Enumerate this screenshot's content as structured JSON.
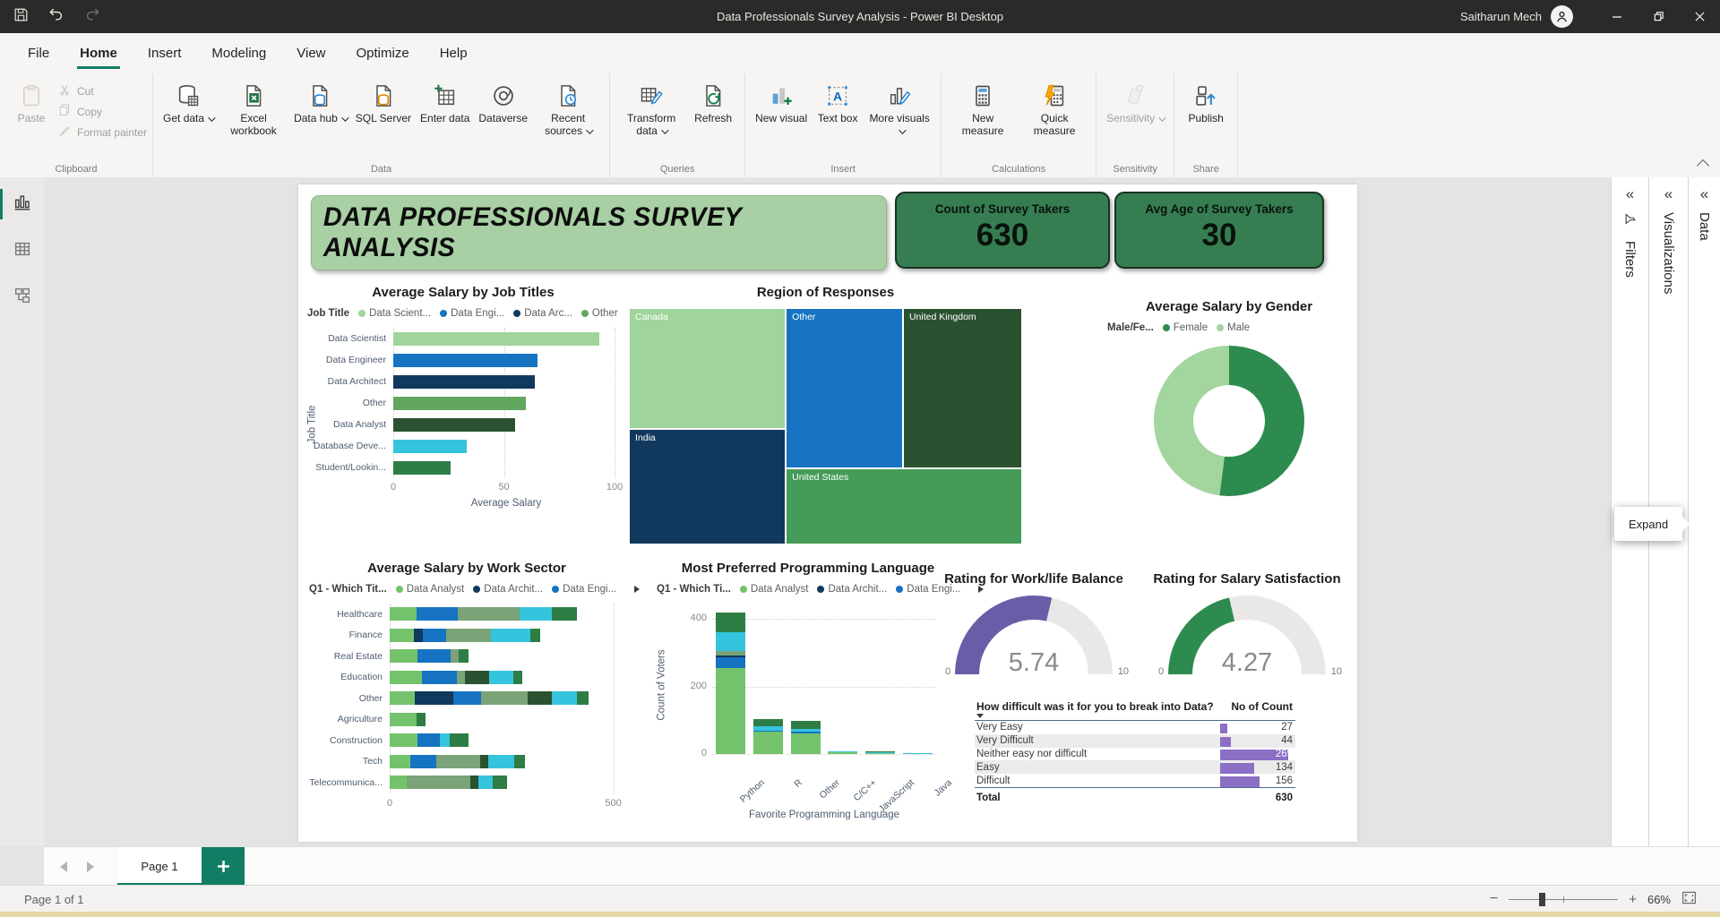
{
  "titlebar": {
    "title": "Data Professionals Survey Analysis - Power BI Desktop",
    "user": "Saitharun Mech"
  },
  "menu": {
    "items": [
      {
        "label": "File",
        "active": false
      },
      {
        "label": "Home",
        "active": true
      },
      {
        "label": "Insert",
        "active": false
      },
      {
        "label": "Modeling",
        "active": false
      },
      {
        "label": "View",
        "active": false
      },
      {
        "label": "Optimize",
        "active": false
      },
      {
        "label": "Help",
        "active": false
      }
    ]
  },
  "ribbon": {
    "groups": [
      {
        "label": "Clipboard",
        "kind": "clipboard",
        "buttons": [
          {
            "label": "Paste",
            "icon": "clipboard",
            "disabled": true
          },
          {
            "label": "Cut",
            "icon": "scissors",
            "disabled": true
          },
          {
            "label": "Copy",
            "icon": "copy",
            "disabled": true
          },
          {
            "label": "Format painter",
            "icon": "brush",
            "disabled": true
          }
        ]
      },
      {
        "label": "Data",
        "kind": "normal",
        "buttons": [
          {
            "label": "Get data",
            "icon": "getdata",
            "chevron": true
          },
          {
            "label": "Excel workbook",
            "icon": "excel"
          },
          {
            "label": "Data hub",
            "icon": "datahub",
            "chevron": true
          },
          {
            "label": "SQL Server",
            "icon": "sql"
          },
          {
            "label": "Enter data",
            "icon": "enterdata"
          },
          {
            "label": "Dataverse",
            "icon": "dataverse"
          },
          {
            "label": "Recent sources",
            "icon": "recent",
            "chevron": true
          }
        ]
      },
      {
        "label": "Queries",
        "kind": "normal",
        "buttons": [
          {
            "label": "Transform data",
            "icon": "transform",
            "chevron": true
          },
          {
            "label": "Refresh",
            "icon": "refresh"
          }
        ]
      },
      {
        "label": "Insert",
        "kind": "normal",
        "buttons": [
          {
            "label": "New visual",
            "icon": "newvisual"
          },
          {
            "label": "Text box",
            "icon": "textbox"
          },
          {
            "label": "More visuals",
            "icon": "morevisuals",
            "chevron": true
          }
        ]
      },
      {
        "label": "Calculations",
        "kind": "normal",
        "buttons": [
          {
            "label": "New measure",
            "icon": "newmeasure"
          },
          {
            "label": "Quick measure",
            "icon": "quickmeasure"
          }
        ]
      },
      {
        "label": "Sensitivity",
        "kind": "normal",
        "buttons": [
          {
            "label": "Sensitivity",
            "icon": "sensitivity",
            "chevron": true,
            "disabled": true
          }
        ]
      },
      {
        "label": "Share",
        "kind": "normal",
        "buttons": [
          {
            "label": "Publish",
            "icon": "publish"
          }
        ]
      }
    ]
  },
  "dashboard": {
    "banner": "DATA PROFESSIONALS SURVEY ANALYSIS",
    "kpis": [
      {
        "label": "Count of Survey Takers",
        "value": "630"
      },
      {
        "label": "Avg Age of Survey Takers",
        "value": "30"
      }
    ]
  },
  "panels": {
    "filters": "Filters",
    "visualizations": "Visualizations",
    "data": "Data",
    "expand_tooltip": "Expand"
  },
  "tabs": {
    "page_label": "Page 1"
  },
  "statusbar": {
    "page_info": "Page 1 of 1",
    "zoom": "66%"
  },
  "chart_data": [
    {
      "id": "job_titles",
      "type": "bar",
      "title": "Average Salary by Job Titles",
      "legend_title": "Job Title",
      "legend": [
        {
          "label": "Data Scient...",
          "color": "#9fd49a"
        },
        {
          "label": "Data Engi...",
          "color": "#1673c1"
        },
        {
          "label": "Data Arc...",
          "color": "#11395d"
        },
        {
          "label": "Other",
          "color": "#61a75f"
        }
      ],
      "categories": [
        "Data Scientist",
        "Data Engineer",
        "Data Architect",
        "Other",
        "Data Analyst",
        "Database Deve...",
        "Student/Lookin..."
      ],
      "values": [
        93,
        65,
        64,
        60,
        55,
        33,
        26
      ],
      "bar_colors": [
        "#9fd49a",
        "#1673c1",
        "#11395d",
        "#61a75f",
        "#2b5230",
        "#35c4dd",
        "#2e7d45"
      ],
      "xlabel": "Average Salary",
      "ylabel": "Job Title",
      "x_ticks": [
        0,
        50,
        100
      ],
      "xlim": [
        0,
        102
      ]
    },
    {
      "id": "regions",
      "type": "treemap",
      "title": "Region of Responses",
      "blocks": [
        {
          "label": "Canada",
          "color": "#9fd49a",
          "x": 0,
          "y": 0,
          "w": 39.9,
          "h": 51.3
        },
        {
          "label": "India",
          "color": "#11395d",
          "x": 0,
          "y": 51.3,
          "w": 39.9,
          "h": 48.7
        },
        {
          "label": "Other",
          "color": "#1673c1",
          "x": 39.9,
          "y": 0,
          "w": 29.8,
          "h": 67.9
        },
        {
          "label": "United Kingdom",
          "color": "#2b5230",
          "x": 69.7,
          "y": 0,
          "w": 30.3,
          "h": 67.9
        },
        {
          "label": "United States",
          "color": "#459b58",
          "x": 39.9,
          "y": 67.9,
          "w": 60.1,
          "h": 32.1
        }
      ]
    },
    {
      "id": "gender",
      "type": "donut",
      "title": "Average Salary by Gender",
      "legend_title": "Male/Fe...",
      "slices": [
        {
          "label": "Female",
          "value": 52,
          "color": "#2e8b4f"
        },
        {
          "label": "Male",
          "value": 48,
          "color": "#a3d69e"
        }
      ]
    },
    {
      "id": "work_sector",
      "type": "stacked_bar",
      "title": "Average Salary by Work Sector",
      "legend_title": "Q1 - Which Tit...",
      "legend": [
        {
          "label": "Data Analyst",
          "color": "#74c36c"
        },
        {
          "label": "Data Archit...",
          "color": "#11395d"
        },
        {
          "label": "Data Engi...",
          "color": "#1673c1"
        }
      ],
      "palette": {
        "analyst": "#74c36c",
        "architect": "#11395d",
        "engineer": "#1673c1",
        "scientist": "#7aa377",
        "dbdev": "#35c4dd",
        "forest": "#2b5230",
        "seagreen": "#2e7d45"
      },
      "x_ticks": [
        0,
        500
      ],
      "xlim": [
        0,
        525
      ],
      "rows": [
        {
          "label": "Healthcare",
          "segments": [
            [
              "analyst",
              60
            ],
            [
              "engineer",
              92
            ],
            [
              "scientist",
              139
            ],
            [
              "dbdev",
              71
            ],
            [
              "seagreen",
              56
            ]
          ]
        },
        {
          "label": "Finance",
          "segments": [
            [
              "analyst",
              54
            ],
            [
              "architect",
              21
            ],
            [
              "engineer",
              51
            ],
            [
              "scientist",
              100
            ],
            [
              "dbdev",
              89
            ],
            [
              "seagreen",
              22
            ]
          ]
        },
        {
          "label": "Real Estate",
          "segments": [
            [
              "analyst",
              62
            ],
            [
              "engineer",
              74
            ],
            [
              "scientist",
              19
            ],
            [
              "seagreen",
              21
            ]
          ]
        },
        {
          "label": "Education",
          "segments": [
            [
              "analyst",
              72
            ],
            [
              "engineer",
              79
            ],
            [
              "scientist",
              17
            ],
            [
              "forest",
              54
            ],
            [
              "dbdev",
              54
            ],
            [
              "seagreen",
              21
            ]
          ]
        },
        {
          "label": "Other",
          "segments": [
            [
              "analyst",
              56
            ],
            [
              "architect",
              87
            ],
            [
              "engineer",
              62
            ],
            [
              "scientist",
              104
            ],
            [
              "forest",
              54
            ],
            [
              "dbdev",
              56
            ],
            [
              "seagreen",
              25
            ]
          ]
        },
        {
          "label": "Agriculture",
          "segments": [
            [
              "analyst",
              60
            ],
            [
              "seagreen",
              21
            ]
          ]
        },
        {
          "label": "Construction",
          "segments": [
            [
              "analyst",
              62
            ],
            [
              "engineer",
              51
            ],
            [
              "dbdev",
              21
            ],
            [
              "seagreen",
              42
            ]
          ]
        },
        {
          "label": "Tech",
          "segments": [
            [
              "analyst",
              47
            ],
            [
              "engineer",
              58
            ],
            [
              "scientist",
              98
            ],
            [
              "forest",
              18
            ],
            [
              "dbdev",
              58
            ],
            [
              "seagreen",
              23
            ]
          ]
        },
        {
          "label": "Telecommunica...",
          "segments": [
            [
              "analyst",
              39
            ],
            [
              "scientist",
              141
            ],
            [
              "forest",
              19
            ],
            [
              "dbdev",
              31
            ],
            [
              "seagreen",
              32
            ]
          ]
        }
      ]
    },
    {
      "id": "languages",
      "type": "stacked_column",
      "title": "Most Preferred Programming Language",
      "legend_title": "Q1 - Which Ti...",
      "legend": [
        {
          "label": "Data Analyst",
          "color": "#74c36c"
        },
        {
          "label": "Data Archit...",
          "color": "#11395d"
        },
        {
          "label": "Data Engi...",
          "color": "#1673c1"
        }
      ],
      "palette": {
        "analyst": "#74c36c",
        "architect": "#11395d",
        "engineer": "#1673c1",
        "scientist": "#7aa377",
        "dbdev": "#35c4dd",
        "forest": "#2b5230",
        "seagreen": "#2e7d45"
      },
      "ylabel": "Count of Voters",
      "xlabel": "Favorite Programming Language",
      "y_ticks": [
        0,
        200,
        400
      ],
      "ylim": [
        0,
        440
      ],
      "columns": [
        {
          "label": "Python",
          "segments": [
            [
              "analyst",
              255
            ],
            [
              "engineer",
              32
            ],
            [
              "architect",
              5
            ],
            [
              "scientist",
              12
            ],
            [
              "dbdev",
              56
            ],
            [
              "seagreen",
              60
            ]
          ]
        },
        {
          "label": "R",
          "segments": [
            [
              "analyst",
              65
            ],
            [
              "engineer",
              3
            ],
            [
              "dbdev",
              13
            ],
            [
              "seagreen",
              22
            ]
          ]
        },
        {
          "label": "Other",
          "segments": [
            [
              "analyst",
              62
            ],
            [
              "engineer",
              4
            ],
            [
              "dbdev",
              9
            ],
            [
              "seagreen",
              23
            ]
          ]
        },
        {
          "label": "C/C++",
          "segments": [
            [
              "analyst",
              5
            ],
            [
              "dbdev",
              4
            ]
          ]
        },
        {
          "label": "JavaScript",
          "segments": [
            [
              "analyst",
              3
            ],
            [
              "dbdev",
              3
            ],
            [
              "seagreen",
              2
            ]
          ]
        },
        {
          "label": "Java",
          "segments": [
            [
              "dbdev",
              4
            ]
          ]
        }
      ]
    },
    {
      "id": "wlb_gauge",
      "type": "gauge",
      "title": "Rating for Work/life Balance",
      "value": "5.74",
      "min": "0",
      "max": "10",
      "color": "#6a5da8"
    },
    {
      "id": "salary_gauge",
      "type": "gauge",
      "title": "Rating for Salary Satisfaction",
      "value": "4.27",
      "min": "0",
      "max": "10",
      "color": "#2e8b4f"
    },
    {
      "id": "difficulty",
      "type": "table",
      "columns": [
        "How difficult was it for you to break into Data?",
        "No of Count"
      ],
      "rows": [
        {
          "label": "Very Easy",
          "value": 27
        },
        {
          "label": "Very Difficult",
          "value": 44
        },
        {
          "label": "Neither easy nor difficult",
          "value": 269
        },
        {
          "label": "Easy",
          "value": 134
        },
        {
          "label": "Difficult",
          "value": 156
        }
      ],
      "total_label": "Total",
      "total": 630,
      "bar_color": "#8b6fc5",
      "bar_max": 269
    }
  ]
}
